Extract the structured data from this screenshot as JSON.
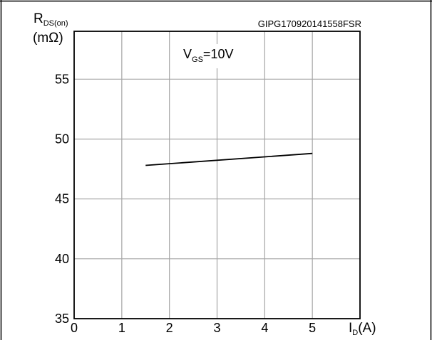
{
  "figure": {
    "id_code": "GIPG170920141558FSR"
  },
  "chart_data": {
    "type": "line",
    "title": "",
    "annotation": {
      "main": "V",
      "sub": "GS",
      "tail": "=10V"
    },
    "ylabel": {
      "main": "R",
      "sub": "DS(on)",
      "unit": "(mΩ)"
    },
    "xlabel": {
      "main": "I",
      "sub": "D",
      "unit": "(A)"
    },
    "xlim": [
      0,
      6
    ],
    "ylim": [
      35,
      59
    ],
    "xticks": [
      0,
      1,
      2,
      3,
      4,
      5
    ],
    "yticks": [
      35,
      40,
      45,
      50,
      55
    ],
    "grid": true,
    "series": [
      {
        "x": [
          1.5,
          5.0
        ],
        "y": [
          47.8,
          48.8
        ]
      }
    ]
  }
}
